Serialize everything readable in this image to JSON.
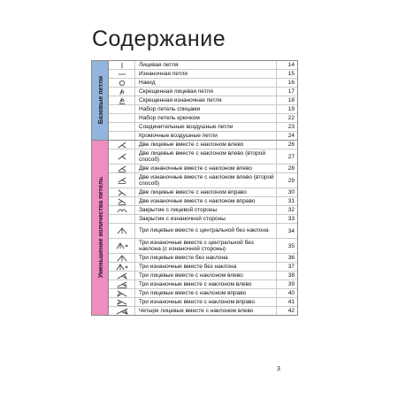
{
  "page": {
    "title": "Содержание",
    "number": "3"
  },
  "sections": [
    {
      "name": "Базовые петли",
      "color": "#93b4dc",
      "rows": [
        {
          "icon": "vertical-line-icon",
          "label": "Лицевая петля",
          "page": "14"
        },
        {
          "icon": "horizontal-line-icon",
          "label": "Изнаночная петля",
          "page": "15"
        },
        {
          "icon": "circle-icon",
          "label": "Накид",
          "page": "16"
        },
        {
          "icon": "crossed-knit-icon",
          "label": "Скрещенная лицевая петля",
          "page": "17"
        },
        {
          "icon": "crossed-purl-icon",
          "label": "Скрещенная изнаночная петля",
          "page": "18"
        },
        {
          "icon": "",
          "label": "Набор петель спицами",
          "page": "19"
        },
        {
          "icon": "",
          "label": "Набор петель крючком",
          "page": "22"
        },
        {
          "icon": "",
          "label": "Соединительные воздушные петли",
          "page": "23"
        },
        {
          "icon": "",
          "label": "Кромочные воздушные петли",
          "page": "24"
        }
      ]
    },
    {
      "name": "Уменьшение количества петель",
      "color": "#f08cc0",
      "rows": [
        {
          "icon": "k2tog-left-icon",
          "label": "Две лицевые вместе с наклоном влево",
          "page": "26"
        },
        {
          "icon": "k2tog-left-alt-icon",
          "label": "Две лицевые вместе с наклоном влево (второй способ)",
          "page": "27",
          "tall": true
        },
        {
          "icon": "p2tog-left-icon",
          "label": "Две изнаночные вместе с наклоном влево",
          "page": "28"
        },
        {
          "icon": "p2tog-left-alt-icon",
          "label": "Две изнаночные вместе с наклоном влево (второй способ)",
          "page": "29",
          "tall": true
        },
        {
          "icon": "k2tog-right-icon",
          "label": "Две лицевые вместе с наклоном вправо",
          "page": "30"
        },
        {
          "icon": "p2tog-right-icon",
          "label": "Две изнаночные вместе с наклоном вправо",
          "page": "31"
        },
        {
          "icon": "bind-off-knit-icon",
          "label": "Закрытие с лицевой стороны",
          "page": "32"
        },
        {
          "icon": "",
          "label": "Закрытие с изнаночной стороны",
          "page": "33"
        },
        {
          "icon": "k3tog-central-icon",
          "label": "Три лицевые вместе с центральной без наклона",
          "page": "34",
          "tall": true
        },
        {
          "icon": "p3tog-central-icon",
          "label": "Три изнаночные вместе с центральной без наклона (с изнаночной стороны)",
          "page": "35",
          "tall": true
        },
        {
          "icon": "k3tog-no-lean-icon",
          "label": "Три лицевые вместе без наклона",
          "page": "36"
        },
        {
          "icon": "p3tog-no-lean-icon",
          "label": "Три изнаночные вместе без наклона",
          "page": "37"
        },
        {
          "icon": "k3tog-left-icon",
          "label": "Три лицевые вместе с наклоном влево",
          "page": "38"
        },
        {
          "icon": "p3tog-left-icon",
          "label": "Три изнаночные вместе с наклоном влево",
          "page": "39"
        },
        {
          "icon": "k3tog-right-icon",
          "label": "Три лицевые вместе с наклоном вправо",
          "page": "40"
        },
        {
          "icon": "p3tog-right-icon",
          "label": "Три изнаночные вместе с наклоном вправо",
          "page": "41"
        },
        {
          "icon": "k4tog-left-icon",
          "label": "Четыре лицевые вместе с наклоном влево",
          "page": "42"
        }
      ]
    }
  ]
}
